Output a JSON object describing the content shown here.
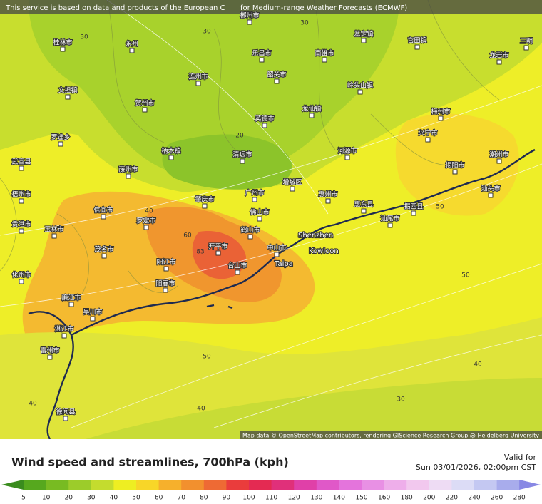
{
  "header": {
    "attribution": "This service is based on data and products of the European C",
    "attribution_end": "for Medium-range Weather Forecasts (ECMWF)"
  },
  "map": {
    "credit": "Map data © OpenStreetMap contributors, rendering GIScience Research Group @ Heidelberg University",
    "cities": [
      "郴州市",
      "桂林市",
      "永州",
      "乐昌市",
      "南雄市",
      "基定镇",
      "宫田镇",
      "龙岩市",
      "三明",
      "连州市",
      "韶关市",
      "岭头山镇",
      "文担镇",
      "贺州市",
      "龙仙镇",
      "英德市",
      "梅州市",
      "兴宁市",
      "罗逢乡",
      "柄木镇",
      "清远市",
      "河源市",
      "武宣县",
      "藤州市",
      "揭阳市",
      "潮州市",
      "广州市",
      "增城区",
      "惠州市",
      "梧州市",
      "肇庆市",
      "佛山市",
      "惠东县",
      "汕尾市",
      "罗定市",
      "鹤山市",
      "开平市",
      "台山市",
      "阳江市",
      "阳春市",
      "信宜市",
      "茂名市",
      "化州市",
      "廉江市",
      "湛江市",
      "吴川市",
      "雷州市",
      "徐闻县",
      "贵港市",
      "玉林市",
      "中山市",
      "揭西县",
      "汕头市"
    ],
    "contours": [
      "30",
      "30",
      "30",
      "20",
      "40",
      "60",
      "83",
      "50",
      "50",
      "50",
      "40",
      "40",
      "40",
      "30"
    ],
    "big_labels": [
      "Shenzhen",
      "Kowloon",
      "Taipa"
    ]
  },
  "footer": {
    "title": "Wind speed and streamlines, 700hPa (kph)",
    "valid_label": "Valid for",
    "valid_time": "Sun 03/01/2026, 02:00pm CST"
  },
  "legend": {
    "ticks": [
      "5",
      "10",
      "20",
      "30",
      "40",
      "50",
      "60",
      "70",
      "80",
      "90",
      "100",
      "110",
      "120",
      "130",
      "140",
      "150",
      "160",
      "180",
      "200",
      "220",
      "240",
      "260",
      "280"
    ],
    "colors": [
      "#3a8c1e",
      "#56a81e",
      "#78bb22",
      "#9ccc2a",
      "#c4dc2e",
      "#eeee22",
      "#f8d628",
      "#f6b02c",
      "#f2902e",
      "#ee6a34",
      "#ea3c3c",
      "#e42a52",
      "#e0307a",
      "#e040a8",
      "#e058c8",
      "#e474dc",
      "#e890e4",
      "#eeaeea",
      "#f2c8ee",
      "#eedcf4",
      "#dcdcf6",
      "#c4c8f2",
      "#a8acec",
      "#8888e4"
    ]
  }
}
